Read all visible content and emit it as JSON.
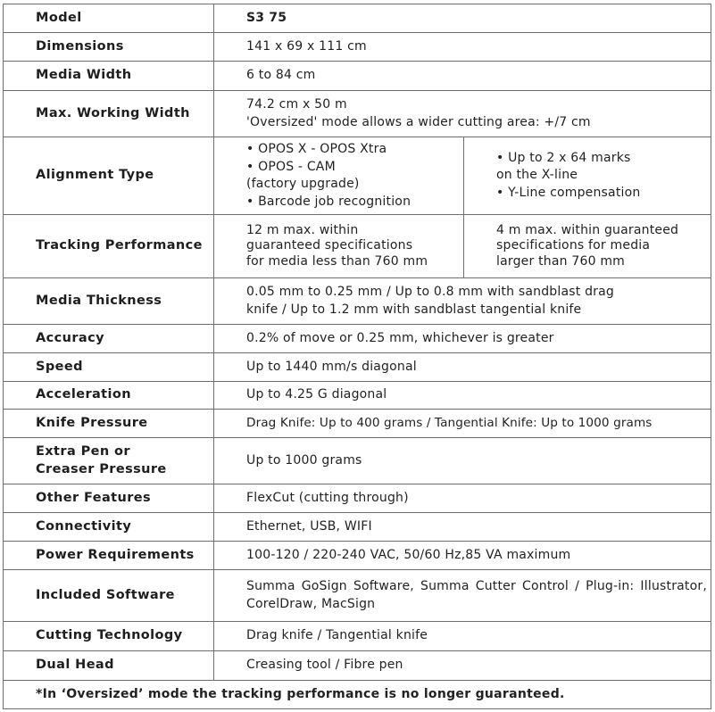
{
  "rows": [
    {
      "label": "Model",
      "value": "S3 75"
    },
    {
      "label": "Dimensions",
      "value": "141 x 69 x 111 cm"
    },
    {
      "label": "Media Width",
      "value": "6 to 84 cm"
    },
    {
      "label": "Max. Working Width",
      "lines": [
        "74.2 cm x 50 m",
        "'Oversized' mode allows a wider cutting area: +/7 cm"
      ]
    },
    {
      "label": "Alignment Type",
      "left": [
        "• OPOS X - OPOS Xtra",
        "• OPOS - CAM",
        "(factory upgrade)",
        "• Barcode job recognition"
      ],
      "right": [
        "• Up to 2 x 64 marks",
        "on the X-line",
        "• Y-Line compensation"
      ]
    },
    {
      "label": "Tracking Performance",
      "left": [
        "12 m max. within",
        "guaranteed specifications",
        "for media less than 760 mm"
      ],
      "right": [
        "4 m max. within guaranteed",
        "specifications for media",
        "larger than 760 mm"
      ]
    },
    {
      "label": "Media Thickness",
      "lines": [
        "0.05 mm to 0.25 mm / Up to 0.8 mm with sandblast drag",
        "knife / Up to 1.2 mm with sandblast tangential knife"
      ]
    },
    {
      "label": "Accuracy",
      "value": "0.2% of move or 0.25 mm, whichever is greater"
    },
    {
      "label": "Speed",
      "value": "Up to 1440 mm/s diagonal"
    },
    {
      "label": "Acceleration",
      "value": "Up to 4.25 G diagonal"
    },
    {
      "label": "Knife Pressure",
      "value": "Drag Knife: Up to 400 grams / Tangential Knife: Up to 1000 grams"
    },
    {
      "label_lines": [
        "Extra Pen or",
        "Creaser Pressure"
      ],
      "value": "Up to 1000 grams"
    },
    {
      "label": "Other Features",
      "value": "FlexCut (cutting through)"
    },
    {
      "label": "Connectivity",
      "value": "Ethernet, USB, WIFI"
    },
    {
      "label": "Power Requirements",
      "value": "100-120 / 220-240 VAC, 50/60 Hz,85 VA maximum"
    },
    {
      "label": "Included Software",
      "value": "Summa GoSign Software, Summa Cutter Control / Plug-in: Illustrator, CorelDraw, MacSign"
    },
    {
      "label": "Cutting Technology",
      "value": "Drag knife / Tangential knife"
    },
    {
      "label": "Dual Head",
      "value": "Creasing tool / Fibre pen"
    }
  ],
  "footnote": "*In ‘Oversized’ mode the tracking performance is no longer guaranteed."
}
